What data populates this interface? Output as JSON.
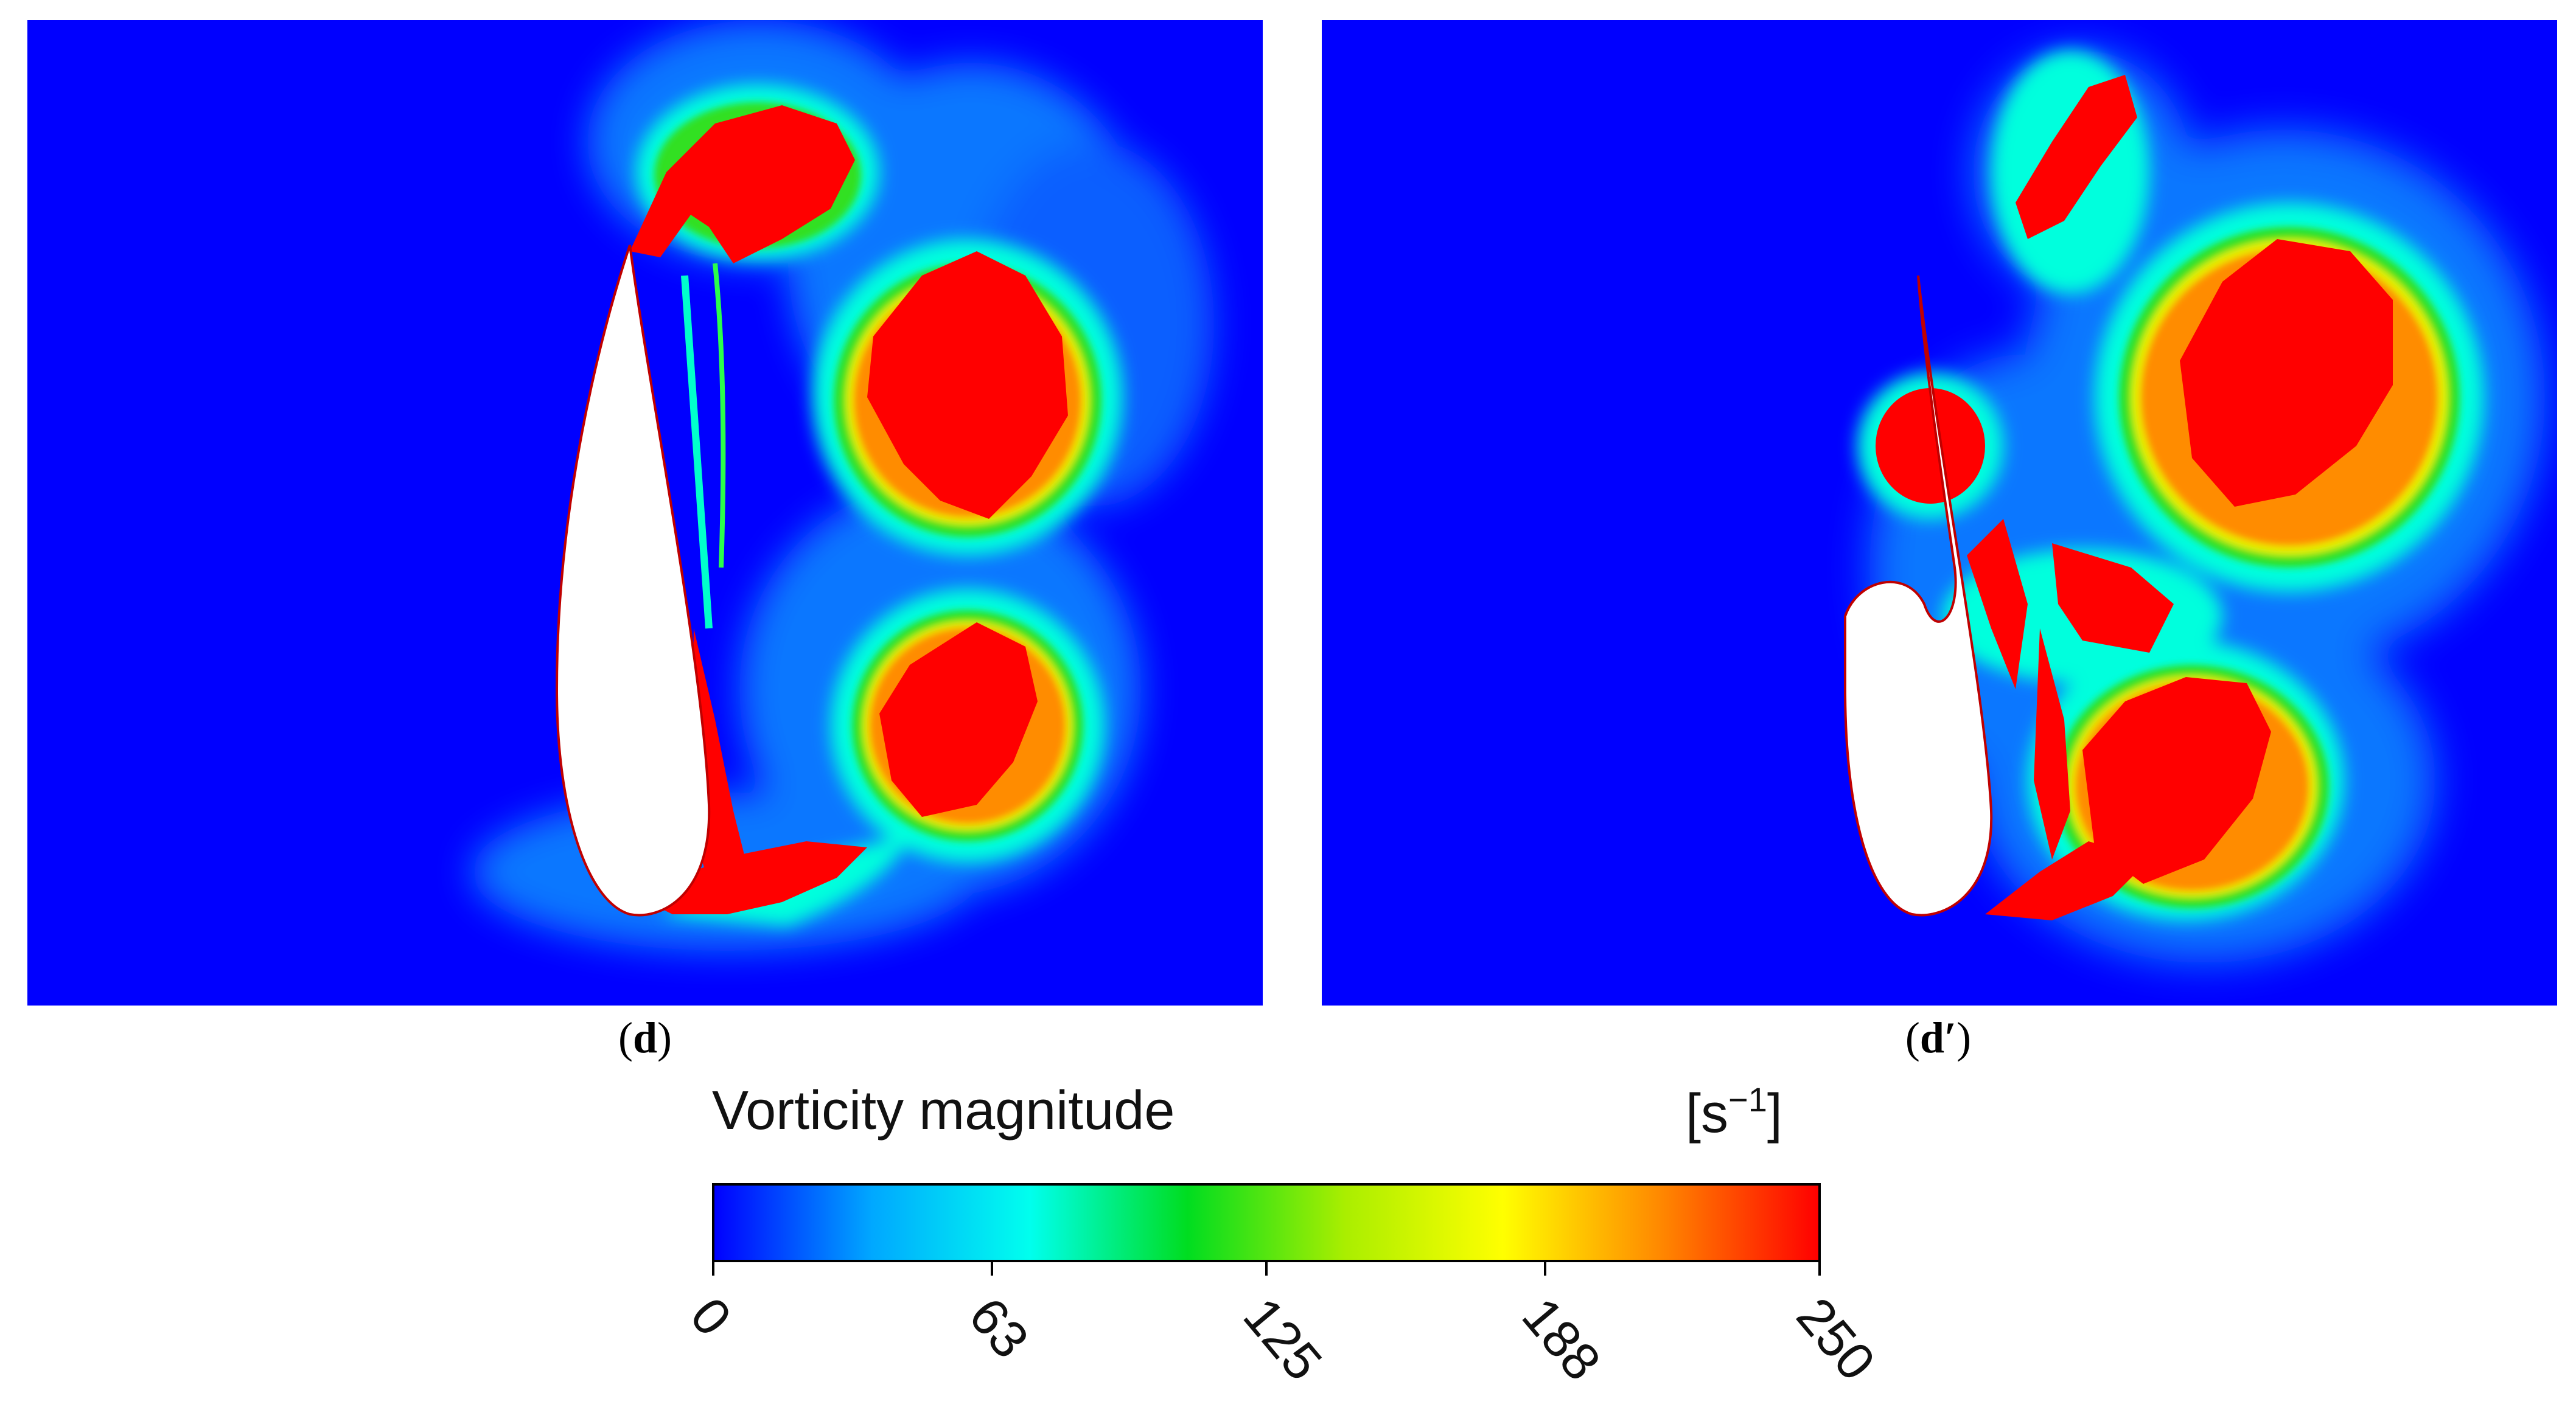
{
  "panels": [
    {
      "label_main": "d",
      "label_suffix": ""
    },
    {
      "label_main": "d′",
      "label_suffix": ""
    }
  ],
  "colorbar": {
    "title": "Vorticity magnitude",
    "units_base": "[s",
    "units_exp": "−1",
    "units_close": "]",
    "ticks": [
      "0",
      "63",
      "125",
      "188",
      "250"
    ],
    "min": 0,
    "max": 250,
    "colors": [
      "#0000ff",
      "#00a8ff",
      "#00ffee",
      "#00dd20",
      "#aaee00",
      "#ffff00",
      "#ff8800",
      "#ff0000"
    ]
  }
}
